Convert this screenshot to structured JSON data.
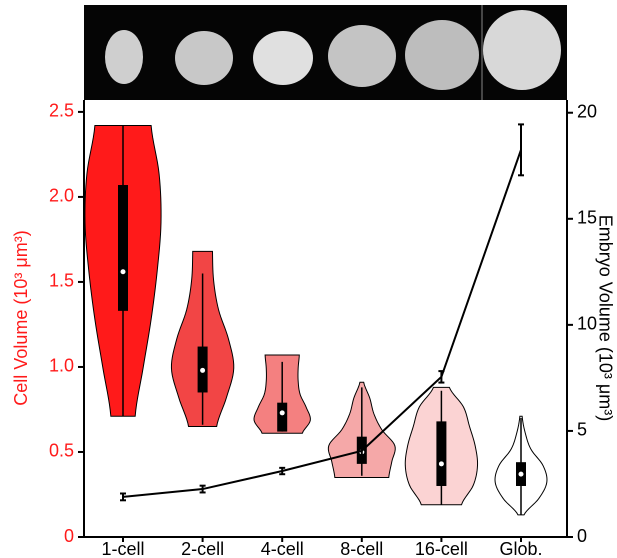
{
  "chart_data": {
    "type": "violin",
    "categories": [
      "1-cell",
      "2-cell",
      "4-cell",
      "8-cell",
      "16-cell",
      "Glob."
    ],
    "ylabel": "Cell Volume (10³ μm³)",
    "ylabel_color": "#ff1a1a",
    "y2label": "Embryo Volume (10³ μm³)",
    "ylim": [
      0,
      2.57
    ],
    "yticks": [
      0,
      0.5,
      {
        "value": 1,
        "label": "1.0"
      },
      1.5,
      {
        "value": 2,
        "label": "2.0"
      },
      2.5
    ],
    "y2lim": [
      0,
      20.6
    ],
    "y2ticks": [
      0,
      5,
      10,
      15,
      20
    ],
    "violins": [
      {
        "color": "#ff1a1a",
        "min": 0.71,
        "max": 2.42,
        "whisker_low": 0.71,
        "whisker_high": 2.42,
        "q1": 1.33,
        "median": 1.56,
        "q3": 2.07,
        "density": [
          0.32,
          0.53,
          0.74,
          0.9,
          1.0,
          0.95,
          0.74
        ]
      },
      {
        "color": "#f24545",
        "min": 0.65,
        "max": 1.68,
        "whisker_low": 0.66,
        "whisker_high": 1.55,
        "q1": 0.85,
        "median": 0.98,
        "q3": 1.12,
        "density": [
          0.37,
          0.63,
          0.82,
          0.68,
          0.42,
          0.29,
          0.26
        ]
      },
      {
        "color": "#f48080",
        "min": 0.61,
        "max": 1.07,
        "whisker_low": 0.62,
        "whisker_high": 1.03,
        "q1": 0.62,
        "median": 0.73,
        "q3": 0.79,
        "density": [
          0.53,
          0.74,
          0.63,
          0.47,
          0.42,
          0.42,
          0.45
        ]
      },
      {
        "color": "#f5a8a8",
        "min": 0.35,
        "max": 0.91,
        "whisker_low": 0.36,
        "whisker_high": 0.88,
        "q1": 0.43,
        "median": 0.5,
        "q3": 0.59,
        "density": [
          0.71,
          0.79,
          0.87,
          0.53,
          0.32,
          0.21,
          0.05
        ]
      },
      {
        "color": "#fbd3d3",
        "min": 0.19,
        "max": 0.88,
        "whisker_low": 0.19,
        "whisker_high": 0.86,
        "q1": 0.3,
        "median": 0.43,
        "q3": 0.68,
        "density": [
          0.53,
          0.84,
          0.95,
          0.89,
          0.74,
          0.58,
          0.21
        ]
      },
      {
        "color": "#ffffff",
        "min": 0.13,
        "max": 0.71,
        "whisker_low": 0.13,
        "whisker_high": 0.7,
        "q1": 0.3,
        "median": 0.37,
        "q3": 0.44,
        "density": [
          0.08,
          0.47,
          0.68,
          0.58,
          0.26,
          0.11,
          0.03
        ]
      }
    ],
    "line": {
      "color": "#000000",
      "axis": "y2",
      "values": [
        1.89,
        2.26,
        3.11,
        4.06,
        7.55,
        18.25
      ],
      "errors": [
        0.16,
        0.16,
        0.15,
        0.2,
        0.27,
        1.2
      ]
    }
  }
}
